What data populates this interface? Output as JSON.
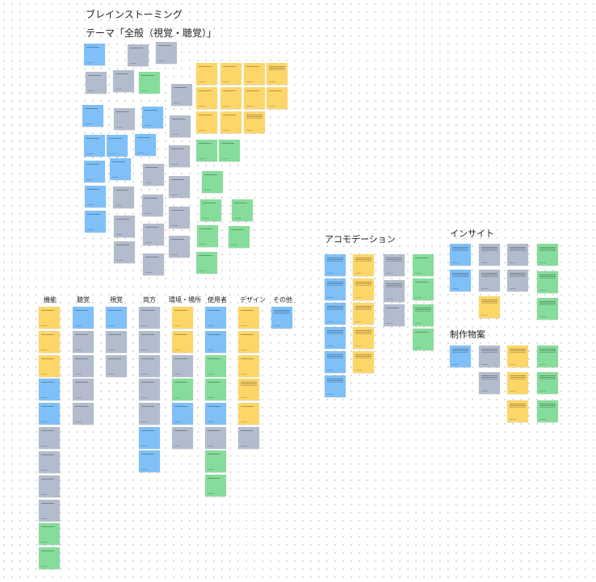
{
  "board": {
    "title": "ブレインストーミング",
    "theme": "テーマ「全般（視覚・聴覚）」"
  },
  "sections": {
    "accommodation": "アコモデーション",
    "insight": "インサイト",
    "production": "制作物案"
  },
  "categories": {
    "function": "機能",
    "hearing": "聴覚",
    "vision": "視覚",
    "both": "両方",
    "environment": "環境・場所",
    "user": "使用者",
    "design": "デザイン",
    "other": "その他"
  },
  "colors": {
    "blue": "#7fc0f8",
    "gray": "#b2bccd",
    "yellow": "#fdd668",
    "green": "#86dd9b"
  }
}
